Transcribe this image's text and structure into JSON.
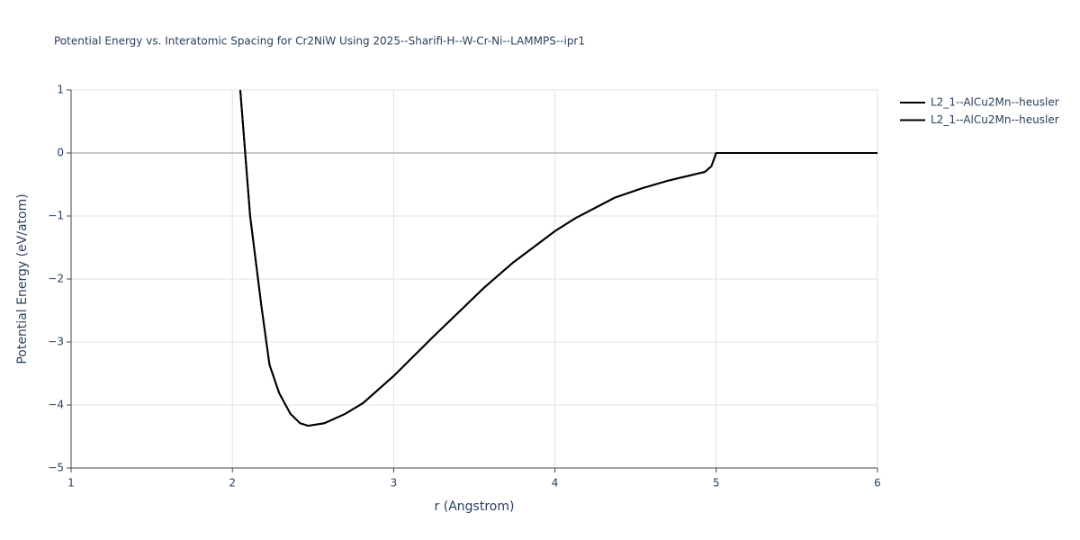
{
  "chart_data": {
    "type": "line",
    "title": "Potential Energy vs. Interatomic Spacing for Cr2NiW Using 2025--Sharifi-H--W-Cr-Ni--LAMMPS--ipr1",
    "x_label": "r (Angstrom)",
    "y_label": "Potential Energy (eV/atom)",
    "x": [
      2.049,
      2.11,
      2.18,
      2.23,
      2.29,
      2.36,
      2.42,
      2.47,
      2.57,
      2.7,
      2.81,
      3.0,
      3.24,
      3.56,
      3.74,
      4.0,
      4.13,
      4.37,
      4.54,
      4.7,
      4.93,
      4.97,
      5.0,
      6.0
    ],
    "series": [
      {
        "name": "L2_1--AlCu2Mn--heusler",
        "color": "#000000",
        "values": [
          1.0,
          -1.0,
          -2.43,
          -3.36,
          -3.81,
          -4.14,
          -4.29,
          -4.33,
          -4.29,
          -4.14,
          -3.97,
          -3.54,
          -2.93,
          -2.14,
          -1.74,
          -1.24,
          -1.03,
          -0.71,
          -0.56,
          -0.44,
          -0.3,
          -0.21,
          0,
          0
        ]
      },
      {
        "name": "L2_1--AlCu2Mn--heusler",
        "color": "#000000",
        "values": [
          1.0,
          -1.0,
          -2.43,
          -3.36,
          -3.81,
          -4.14,
          -4.29,
          -4.33,
          -4.29,
          -4.14,
          -3.97,
          -3.54,
          -2.93,
          -2.14,
          -1.74,
          -1.24,
          -1.03,
          -0.71,
          -0.56,
          -0.44,
          -0.3,
          -0.21,
          0,
          0
        ]
      }
    ],
    "xlim": [
      1,
      6
    ],
    "xticks": [
      1,
      2,
      3,
      4,
      5,
      6
    ],
    "ylim": [
      -5,
      1
    ],
    "yticks": [
      {
        "value": -5,
        "label": "−5"
      },
      {
        "value": -4,
        "label": "−4"
      },
      {
        "value": -3,
        "label": "−3"
      },
      {
        "value": -2,
        "label": "−2"
      },
      {
        "value": -1,
        "label": "−1"
      },
      0,
      1
    ],
    "grid": true
  }
}
